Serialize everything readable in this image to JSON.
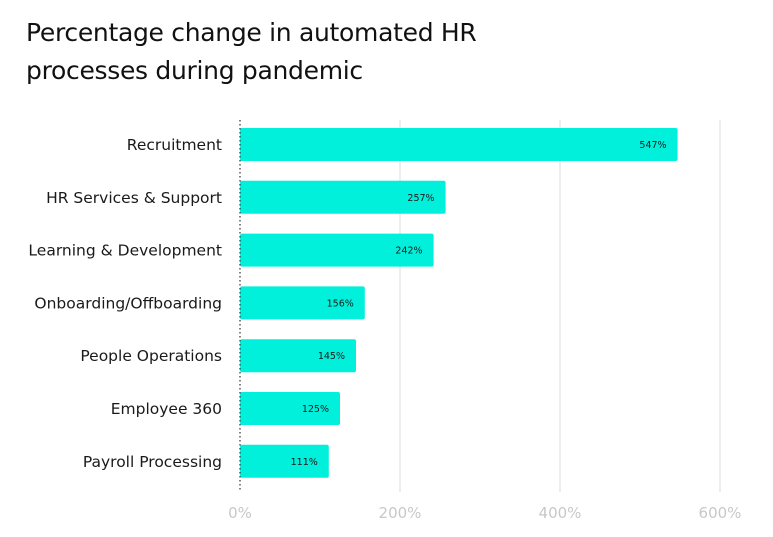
{
  "chart_data": {
    "type": "bar",
    "orientation": "horizontal",
    "title_lines": [
      "Percentage change in automated HR",
      "processes during pandemic"
    ],
    "categories": [
      "Recruitment",
      "HR Services & Support",
      "Learning & Development",
      "Onboarding/Offboarding",
      "People Operations",
      "Employee 360",
      "Payroll Processing"
    ],
    "values": [
      547,
      257,
      242,
      156,
      145,
      125,
      111
    ],
    "value_labels": [
      "547%",
      "257%",
      "242%",
      "156%",
      "145%",
      "125%",
      "111%"
    ],
    "x_ticks": [
      0,
      200,
      400,
      600
    ],
    "x_tick_labels": [
      "0%",
      "200%",
      "400%",
      "600%"
    ],
    "xlim": [
      0,
      600
    ],
    "grid": true,
    "bar_color": "#00f0dc",
    "grid_color": "#dddddd",
    "tick_label_color": "#c8c8c8"
  }
}
